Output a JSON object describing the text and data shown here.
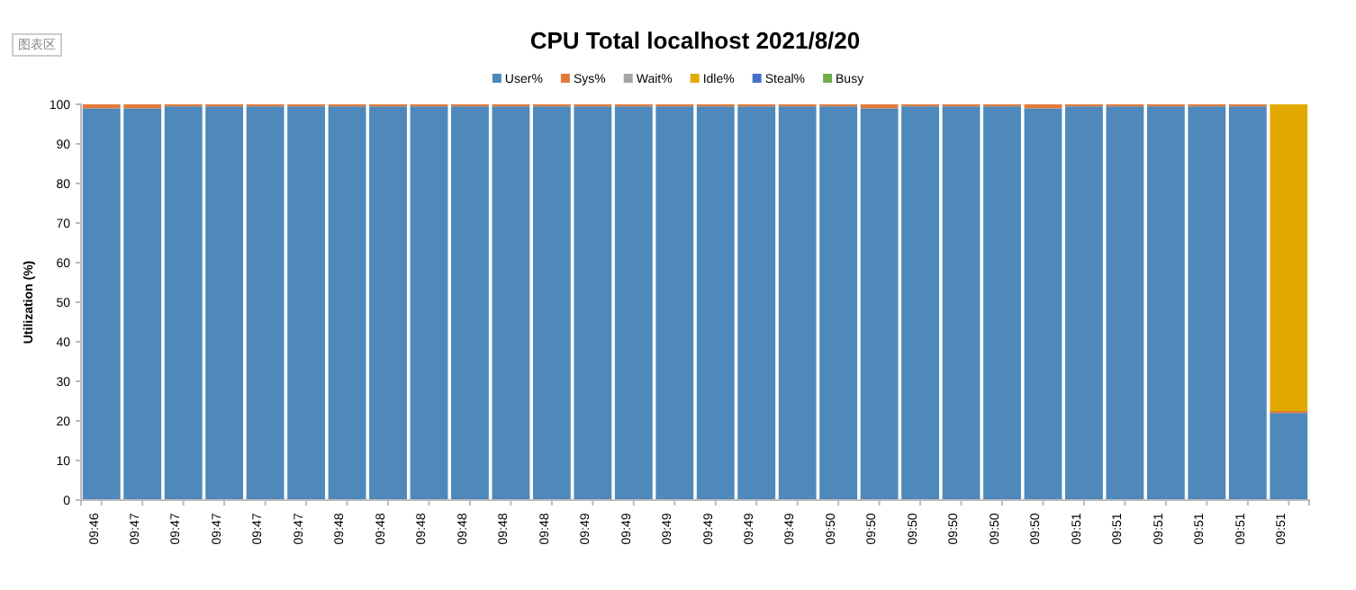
{
  "chart_data": {
    "type": "bar",
    "stacked": true,
    "title": "CPU Total localhost  2021/8/20",
    "ylabel": "Utilization (%)",
    "annotations": [
      "图表区"
    ],
    "categories": [
      "09:46",
      "09:47",
      "09:47",
      "09:47",
      "09:47",
      "09:47",
      "09:48",
      "09:48",
      "09:48",
      "09:48",
      "09:48",
      "09:48",
      "09:49",
      "09:49",
      "09:49",
      "09:49",
      "09:49",
      "09:49",
      "09:50",
      "09:50",
      "09:50",
      "09:50",
      "09:50",
      "09:50",
      "09:51",
      "09:51",
      "09:51",
      "09:51",
      "09:51",
      "09:51"
    ],
    "series": [
      {
        "name": "User%",
        "color": "#4f88bb",
        "values": [
          99,
          99,
          99.5,
          99.5,
          99.5,
          99.5,
          99.5,
          99.5,
          99.5,
          99.5,
          99.5,
          99.5,
          99.5,
          99.5,
          99.5,
          99.5,
          99.5,
          99.5,
          99.5,
          99,
          99.5,
          99.5,
          99.5,
          99,
          99.5,
          99.5,
          99.5,
          99.5,
          99.5,
          22
        ]
      },
      {
        "name": "Sys%",
        "color": "#e07b39",
        "values": [
          1,
          1,
          0.5,
          0.5,
          0.5,
          0.5,
          0.5,
          0.5,
          0.5,
          0.5,
          0.5,
          0.5,
          0.5,
          0.5,
          0.5,
          0.5,
          0.5,
          0.5,
          0.5,
          1,
          0.5,
          0.5,
          0.5,
          1,
          0.5,
          0.5,
          0.5,
          0.5,
          0.5,
          0.5
        ]
      },
      {
        "name": "Wait%",
        "color": "#a5a5a5",
        "values": [
          0,
          0,
          0,
          0,
          0,
          0,
          0,
          0,
          0,
          0,
          0,
          0,
          0,
          0,
          0,
          0,
          0,
          0,
          0,
          0,
          0,
          0,
          0,
          0,
          0,
          0,
          0,
          0,
          0,
          0
        ]
      },
      {
        "name": "Idle%",
        "color": "#e2aa00",
        "values": [
          0,
          0,
          0,
          0,
          0,
          0,
          0,
          0,
          0,
          0,
          0,
          0,
          0,
          0,
          0,
          0,
          0,
          0,
          0,
          0,
          0,
          0,
          0,
          0,
          0,
          0,
          0,
          0,
          0,
          77.5
        ]
      },
      {
        "name": "Steal%",
        "color": "#4472c4",
        "values": [
          0,
          0,
          0,
          0,
          0,
          0,
          0,
          0,
          0,
          0,
          0,
          0,
          0,
          0,
          0,
          0,
          0,
          0,
          0,
          0,
          0,
          0,
          0,
          0,
          0,
          0,
          0,
          0,
          0,
          0
        ]
      },
      {
        "name": "Busy",
        "color": "#70ad47",
        "values": [
          0,
          0,
          0,
          0,
          0,
          0,
          0,
          0,
          0,
          0,
          0,
          0,
          0,
          0,
          0,
          0,
          0,
          0,
          0,
          0,
          0,
          0,
          0,
          0,
          0,
          0,
          0,
          0,
          0,
          0
        ]
      }
    ],
    "ylim": [
      0,
      100
    ],
    "yticks": [
      0,
      10,
      20,
      30,
      40,
      50,
      60,
      70,
      80,
      90,
      100
    ],
    "legend": "top",
    "grid": false
  }
}
